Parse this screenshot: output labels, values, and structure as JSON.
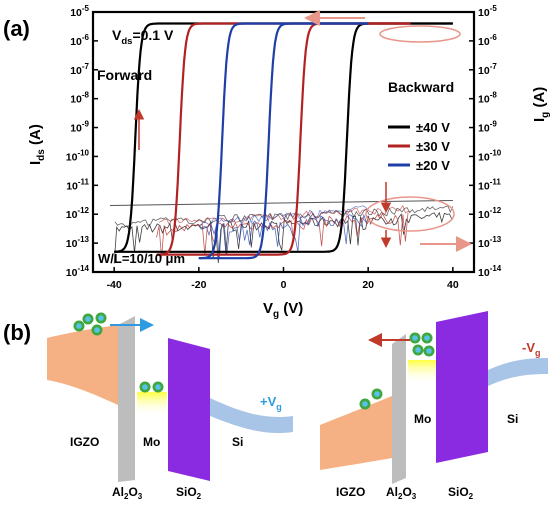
{
  "panel_a": {
    "label": "(a)",
    "vds_text": "V",
    "vds_sub": "ds",
    "vds_value": "=0.1 V",
    "forward_label": "Forward",
    "backward_label": "Backward",
    "wl_label": "W/L=10/10 μm",
    "ylabel_left_main": "I",
    "ylabel_left_sub": "ds",
    "ylabel_left_unit": " (A)",
    "ylabel_right_main": "I",
    "ylabel_right_sub": "g",
    "ylabel_right_unit": " (A)",
    "xlabel_main": "V",
    "xlabel_sub": "g",
    "xlabel_unit": " (V)"
  },
  "panel_b": {
    "label": "(b)",
    "left": {
      "igzo": "IGZO",
      "al2o3_main": "Al",
      "al2o3_sub1": "2",
      "al2o3_o": "O",
      "al2o3_sub2": "3",
      "mo": "Mo",
      "sio2_main": "SiO",
      "sio2_sub": "2",
      "si": "Si",
      "bias_main": "+V",
      "bias_sub": "g"
    },
    "right": {
      "igzo": "IGZO",
      "al2o3_main": "Al",
      "al2o3_sub1": "2",
      "al2o3_o": "O",
      "al2o3_sub2": "3",
      "mo": "Mo",
      "sio2_main": "SiO",
      "sio2_sub": "2",
      "si": "Si",
      "bias_main": "-V",
      "bias_sub": "g"
    }
  },
  "colors": {
    "s40": "#000000",
    "s30": "#b22222",
    "s20": "#1f3fa8",
    "gate_leak": "#555555",
    "arrow_pink": "#e9968a",
    "igzo": "#f5b183",
    "al2o3": "#bdbdbd",
    "sio2": "#8a2be2",
    "si": "#a8c4e6",
    "mo_glow": "#ffff33",
    "electron": "#3ea83e",
    "electron_core": "#5bc0ee",
    "blue_arrow": "#2e9be0",
    "red_arrow": "#c0392b"
  },
  "chart_data": {
    "type": "line",
    "title": "",
    "xlabel": "Vg (V)",
    "ylabel": "Ids (A)",
    "y2label": "Ig (A)",
    "xlim": [
      -45,
      45
    ],
    "xticks": [
      -40,
      -20,
      0,
      20,
      40
    ],
    "yscale": "log",
    "ylim": [
      1e-14,
      1e-05
    ],
    "yticks": [
      "10-14",
      "10-13",
      "10-12",
      "10-11",
      "10-10",
      "10-9",
      "10-8",
      "10-7",
      "10-6",
      "10-5"
    ],
    "y2ticks": [
      "10-14",
      "10-13",
      "10-12",
      "10-11",
      "10-10",
      "10-9",
      "10-8",
      "10-7",
      "10-6",
      "10-5"
    ],
    "legend_position": "right",
    "series": [
      {
        "name": "±40 V",
        "color_key": "s40",
        "sweep_min": -40,
        "sweep_max": 40,
        "forward_vth": -35,
        "backward_vth": 15,
        "ion": 4e-06,
        "ioff": 5e-14
      },
      {
        "name": "±30 V",
        "color_key": "s30",
        "sweep_min": -30,
        "sweep_max": 30,
        "forward_vth": -24.5,
        "backward_vth": 4,
        "ion": 4e-06,
        "ioff": 4e-14
      },
      {
        "name": "±20 V",
        "color_key": "s20",
        "sweep_min": -20,
        "sweep_max": 20,
        "forward_vth": -14.5,
        "backward_vth": -3.5,
        "ion": 4e-06,
        "ioff": 3e-14
      }
    ]
  }
}
